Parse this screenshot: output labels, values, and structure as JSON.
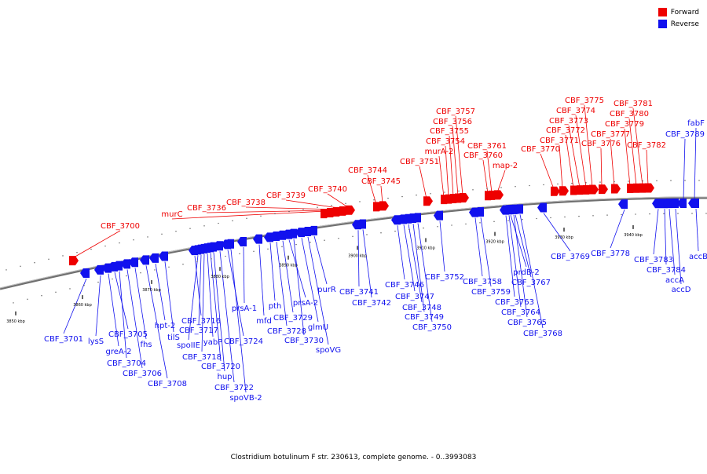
{
  "legend": [
    {
      "label": "Forward",
      "color": "#ee0000"
    },
    {
      "label": "Reverse",
      "color": "#1111ee"
    }
  ],
  "colors": {
    "forward": "#ee0000",
    "reverse": "#1111ee",
    "backbone": "#777777"
  },
  "caption": "Clostridium botulinum F str. 230613, complete genome. - 0..3993083",
  "ticks": [
    {
      "label": "3850 kbp"
    },
    {
      "label": "3860 kbp"
    },
    {
      "label": "3870 kbp"
    },
    {
      "label": "3880 kbp"
    },
    {
      "label": "3890 kbp"
    },
    {
      "label": "3900 kbp"
    },
    {
      "label": "3910 kbp"
    },
    {
      "label": "3920 kbp"
    },
    {
      "label": "3930 kbp"
    },
    {
      "label": "3940 kbp"
    }
  ],
  "forward_genes": [
    "CBF_3700",
    "murC",
    "CBF_3736",
    "CBF_3738",
    "CBF_3739",
    "CBF_3740",
    "CBF_3744",
    "CBF_3745",
    "CBF_3751",
    "murA-2",
    "CBF_3754",
    "CBF_3755",
    "CBF_3756",
    "CBF_3757",
    "CBF_3760",
    "CBF_3761",
    "map-2",
    "CBF_3770",
    "CBF_3771",
    "CBF_3772",
    "CBF_3773",
    "CBF_3774",
    "CBF_3775",
    "CBF_3776",
    "CBF_3777",
    "CBF_3779",
    "CBF_3780",
    "CBF_3781",
    "CBF_3782"
  ],
  "reverse_genes": [
    "CBF_3701",
    "lysS",
    "greA-2",
    "CBF_3705",
    "CBF_3704",
    "CBF_3706",
    "fhs",
    "CBF_3708",
    "hpt-2",
    "tilS",
    "CBF_3716",
    "spoIIE",
    "CBF_3717",
    "CBF_3718",
    "yabP",
    "CBF_3720",
    "hup",
    "CBF_3722",
    "CBF_3724",
    "spoVB-2",
    "prsA-1",
    "mfd",
    "pth",
    "CBF_3728",
    "CBF_3729",
    "prsA-2",
    "CBF_3730",
    "glmU",
    "spoVG",
    "purR",
    "CBF_3741",
    "CBF_3742",
    "CBF_3746",
    "CBF_3747",
    "CBF_3748",
    "CBF_3749",
    "CBF_3750",
    "CBF_3752",
    "CBF_3758",
    "CBF_3759",
    "prdB-2",
    "CBF_3767",
    "CBF_3763",
    "CBF_3764",
    "CBF_3765",
    "CBF_3768",
    "CBF_3769",
    "CBF_3778",
    "CBF_3783",
    "CBF_3784",
    "accA",
    "accD",
    "accB",
    "fabF",
    "CBF_3789"
  ]
}
